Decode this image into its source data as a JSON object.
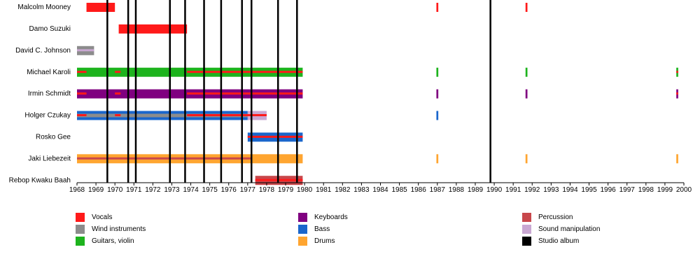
{
  "chart_data": {
    "type": "timeline",
    "x_range": [
      1968,
      2000
    ],
    "x_ticks": [
      "1968",
      "1969",
      "1970",
      "1971",
      "1972",
      "1973",
      "1974",
      "1975",
      "1976",
      "1977",
      "1978",
      "1979",
      "1980",
      "1981",
      "1982",
      "1983",
      "1984",
      "1985",
      "1986",
      "1987",
      "1988",
      "1989",
      "1990",
      "1991",
      "1992",
      "1993",
      "1994",
      "1995",
      "1996",
      "1997",
      "1998",
      "1999",
      "2000"
    ],
    "grid": false,
    "legend_placement": "bottom",
    "roles": {
      "vocals": {
        "label": "Vocals",
        "color": "#ff1a1a"
      },
      "wind": {
        "label": "Wind instruments",
        "color": "#8c8c8c"
      },
      "guitar": {
        "label": "Guitars, violin",
        "color": "#1db31d"
      },
      "keyboards": {
        "label": "Keyboards",
        "color": "#800080"
      },
      "bass": {
        "label": "Bass",
        "color": "#1a66cc"
      },
      "drums": {
        "label": "Drums",
        "color": "#ffa530"
      },
      "percussion": {
        "label": "Percussion",
        "color": "#c8474b"
      },
      "sound": {
        "label": "Sound manipulation",
        "color": "#c9a7d2"
      },
      "album": {
        "label": "Studio album",
        "color": "#000000"
      }
    },
    "legend_order": [
      [
        "vocals",
        "wind",
        "guitar"
      ],
      [
        "keyboards",
        "bass",
        "drums"
      ],
      [
        "percussion",
        "sound",
        "album"
      ]
    ],
    "studio_albums": [
      1969.6,
      1970.7,
      1971.1,
      1972.9,
      1973.7,
      1974.7,
      1975.6,
      1976.7,
      1977.2,
      1978.6,
      1979.6,
      1989.8
    ],
    "members": [
      {
        "name": "Malcolm Mooney",
        "spans": [
          {
            "role": "vocals",
            "start": 1968.5,
            "end": 1970.0
          },
          {
            "role": "vocals",
            "start": 1986.95,
            "end": 1987.05
          },
          {
            "role": "vocals",
            "start": 1991.65,
            "end": 1991.75
          }
        ]
      },
      {
        "name": "Damo Suzuki",
        "spans": [
          {
            "role": "vocals",
            "start": 1970.2,
            "end": 1973.8
          }
        ]
      },
      {
        "name": "David C. Johnson",
        "spans": [
          {
            "role": "wind",
            "start": 1968.0,
            "end": 1968.9,
            "secondary": "sound"
          }
        ]
      },
      {
        "name": "Michael Karoli",
        "spans": [
          {
            "role": "guitar",
            "start": 1968.0,
            "end": 1979.9
          },
          {
            "role": "vocals",
            "start": 1968.0,
            "end": 1968.5,
            "thin": true
          },
          {
            "role": "vocals",
            "start": 1970.0,
            "end": 1970.3,
            "thin": true
          },
          {
            "role": "vocals",
            "start": 1973.8,
            "end": 1979.9,
            "thin": true
          },
          {
            "role": "guitar",
            "start": 1986.95,
            "end": 1987.05
          },
          {
            "role": "guitar",
            "start": 1991.65,
            "end": 1991.75
          },
          {
            "role": "guitar",
            "start": 1999.6,
            "end": 1999.7
          },
          {
            "role": "vocals",
            "start": 1999.6,
            "end": 1999.7,
            "thin": true
          }
        ]
      },
      {
        "name": "Irmin Schmidt",
        "spans": [
          {
            "role": "keyboards",
            "start": 1968.0,
            "end": 1979.9
          },
          {
            "role": "vocals",
            "start": 1968.0,
            "end": 1968.5,
            "thin": true
          },
          {
            "role": "vocals",
            "start": 1970.0,
            "end": 1970.3,
            "thin": true
          },
          {
            "role": "vocals",
            "start": 1973.8,
            "end": 1979.9,
            "thin": true
          },
          {
            "role": "keyboards",
            "start": 1986.95,
            "end": 1987.05
          },
          {
            "role": "keyboards",
            "start": 1991.65,
            "end": 1991.75
          },
          {
            "role": "keyboards",
            "start": 1999.6,
            "end": 1999.7
          },
          {
            "role": "vocals",
            "start": 1999.6,
            "end": 1999.7,
            "thin": true
          }
        ]
      },
      {
        "name": "Holger Czukay",
        "spans": [
          {
            "role": "bass",
            "start": 1968.0,
            "end": 1977.0
          },
          {
            "role": "wind",
            "start": 1968.0,
            "end": 1977.0,
            "inner": true
          },
          {
            "role": "sound",
            "start": 1977.0,
            "end": 1978.0
          },
          {
            "role": "vocals",
            "start": 1968.0,
            "end": 1968.5,
            "thin": true
          },
          {
            "role": "vocals",
            "start": 1970.0,
            "end": 1970.3,
            "thin": true
          },
          {
            "role": "vocals",
            "start": 1973.8,
            "end": 1978.0,
            "thin": true
          },
          {
            "role": "bass",
            "start": 1986.95,
            "end": 1987.05
          }
        ]
      },
      {
        "name": "Rosko Gee",
        "spans": [
          {
            "role": "bass",
            "start": 1977.0,
            "end": 1979.9
          },
          {
            "role": "vocals",
            "start": 1977.0,
            "end": 1979.9,
            "thin": true
          }
        ]
      },
      {
        "name": "Jaki Liebezeit",
        "spans": [
          {
            "role": "drums",
            "start": 1968.0,
            "end": 1979.9
          },
          {
            "role": "percussion",
            "start": 1968.0,
            "end": 1977.2,
            "thin": true
          },
          {
            "role": "drums",
            "start": 1986.95,
            "end": 1987.05
          },
          {
            "role": "drums",
            "start": 1991.65,
            "end": 1991.75
          },
          {
            "role": "drums",
            "start": 1999.6,
            "end": 1999.7
          }
        ]
      },
      {
        "name": "Rebop Kwaku Baah",
        "spans": [
          {
            "role": "percussion",
            "start": 1977.4,
            "end": 1979.9
          },
          {
            "role": "vocals",
            "start": 1977.4,
            "end": 1979.9,
            "thin": true
          }
        ]
      }
    ]
  }
}
